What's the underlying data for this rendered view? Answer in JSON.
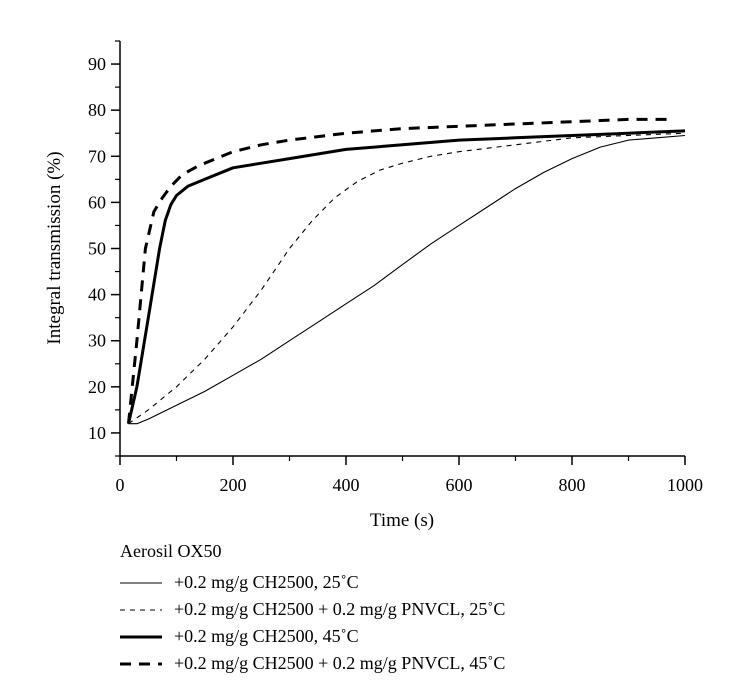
{
  "chart_data": {
    "type": "line",
    "title": "",
    "xlabel": "Time (s)",
    "ylabel": "Integral transmission (%)",
    "xlim": [
      0,
      1000
    ],
    "ylim": [
      5,
      95
    ],
    "xticks": [
      0,
      200,
      400,
      600,
      800,
      1000
    ],
    "yticks": [
      10,
      20,
      30,
      40,
      50,
      60,
      70,
      80,
      90
    ],
    "grid": false,
    "legend_title": "Aerosil OX50",
    "series": [
      {
        "name": "+0.2 mg/g CH2500, 25˚C",
        "style": "solid-thin",
        "points": [
          [
            15,
            12
          ],
          [
            30,
            12
          ],
          [
            50,
            13
          ],
          [
            100,
            16
          ],
          [
            150,
            19
          ],
          [
            200,
            22.5
          ],
          [
            250,
            26
          ],
          [
            300,
            30
          ],
          [
            350,
            34
          ],
          [
            400,
            38
          ],
          [
            450,
            42
          ],
          [
            500,
            46.5
          ],
          [
            550,
            51
          ],
          [
            600,
            55
          ],
          [
            650,
            59
          ],
          [
            700,
            63
          ],
          [
            750,
            66.5
          ],
          [
            800,
            69.5
          ],
          [
            850,
            72
          ],
          [
            900,
            73.5
          ],
          [
            950,
            74
          ],
          [
            1000,
            74.5
          ]
        ]
      },
      {
        "name": "+0.2 mg/g CH2500 + 0.2 mg/g PNVCL, 25˚C",
        "style": "dashed-thin",
        "points": [
          [
            15,
            12
          ],
          [
            50,
            15
          ],
          [
            100,
            20
          ],
          [
            150,
            26
          ],
          [
            200,
            33
          ],
          [
            250,
            41
          ],
          [
            300,
            50
          ],
          [
            340,
            56
          ],
          [
            380,
            61
          ],
          [
            420,
            64.5
          ],
          [
            460,
            67
          ],
          [
            500,
            68.5
          ],
          [
            550,
            70
          ],
          [
            600,
            71
          ],
          [
            700,
            72.5
          ],
          [
            800,
            74
          ],
          [
            900,
            74.5
          ],
          [
            1000,
            75
          ]
        ]
      },
      {
        "name": "+0.2 mg/g CH2500, 45˚C",
        "style": "solid-thick",
        "points": [
          [
            15,
            12
          ],
          [
            30,
            20
          ],
          [
            50,
            35
          ],
          [
            70,
            50
          ],
          [
            80,
            56
          ],
          [
            90,
            59.5
          ],
          [
            100,
            61.5
          ],
          [
            120,
            63.5
          ],
          [
            150,
            65
          ],
          [
            200,
            67.5
          ],
          [
            250,
            68.5
          ],
          [
            300,
            69.5
          ],
          [
            400,
            71.5
          ],
          [
            500,
            72.5
          ],
          [
            600,
            73.5
          ],
          [
            700,
            74
          ],
          [
            800,
            74.5
          ],
          [
            900,
            75
          ],
          [
            1000,
            75.5
          ]
        ]
      },
      {
        "name": "+0.2 mg/g CH2500 + 0.2 mg/g PNVCL, 45˚C",
        "style": "dashed-thick",
        "points": [
          [
            15,
            12
          ],
          [
            30,
            30
          ],
          [
            45,
            50
          ],
          [
            60,
            58
          ],
          [
            75,
            61
          ],
          [
            90,
            63.5
          ],
          [
            110,
            66
          ],
          [
            140,
            68
          ],
          [
            200,
            71
          ],
          [
            250,
            72.5
          ],
          [
            300,
            73.5
          ],
          [
            400,
            75
          ],
          [
            500,
            76
          ],
          [
            600,
            76.5
          ],
          [
            700,
            77
          ],
          [
            800,
            77.5
          ],
          [
            900,
            78
          ],
          [
            970,
            78
          ]
        ]
      }
    ]
  }
}
